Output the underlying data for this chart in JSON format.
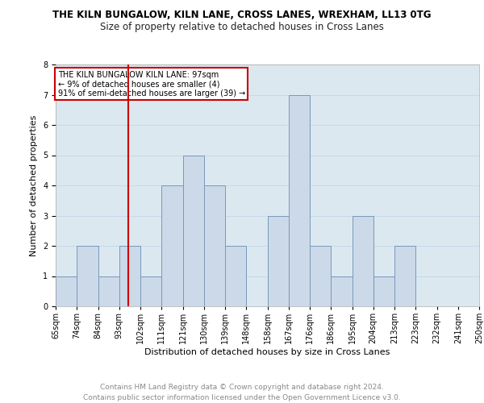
{
  "title1": "THE KILN BUNGALOW, KILN LANE, CROSS LANES, WREXHAM, LL13 0TG",
  "title2": "Size of property relative to detached houses in Cross Lanes",
  "xlabel": "Distribution of detached houses by size in Cross Lanes",
  "ylabel": "Number of detached properties",
  "footer": "Contains HM Land Registry data © Crown copyright and database right 2024.\nContains public sector information licensed under the Open Government Licence v3.0.",
  "bin_labels": [
    "65sqm",
    "74sqm",
    "84sqm",
    "93sqm",
    "102sqm",
    "111sqm",
    "121sqm",
    "130sqm",
    "139sqm",
    "148sqm",
    "158sqm",
    "167sqm",
    "176sqm",
    "186sqm",
    "195sqm",
    "204sqm",
    "213sqm",
    "223sqm",
    "232sqm",
    "241sqm",
    "250sqm"
  ],
  "bar_values": [
    1,
    2,
    1,
    2,
    1,
    4,
    5,
    4,
    2,
    0,
    3,
    7,
    2,
    1,
    3,
    1,
    2,
    0,
    0,
    0
  ],
  "bar_color": "#ccd9e8",
  "bar_edge_color": "#7799bb",
  "bar_edge_width": 0.7,
  "vline_color": "#cc0000",
  "annotation_lines": [
    "THE KILN BUNGALOW KILN LANE: 97sqm",
    "← 9% of detached houses are smaller (4)",
    "91% of semi-detached houses are larger (39) →"
  ],
  "annotation_box_color": "#ffffff",
  "annotation_box_edge": "#cc0000",
  "ylim": [
    0,
    8
  ],
  "yticks": [
    0,
    1,
    2,
    3,
    4,
    5,
    6,
    7,
    8
  ],
  "grid_color": "#c8d8e8",
  "bg_color": "#dce8f0",
  "title1_fontsize": 8.5,
  "title2_fontsize": 8.5,
  "footer_fontsize": 6.5,
  "axis_label_fontsize": 8,
  "tick_fontsize": 7
}
